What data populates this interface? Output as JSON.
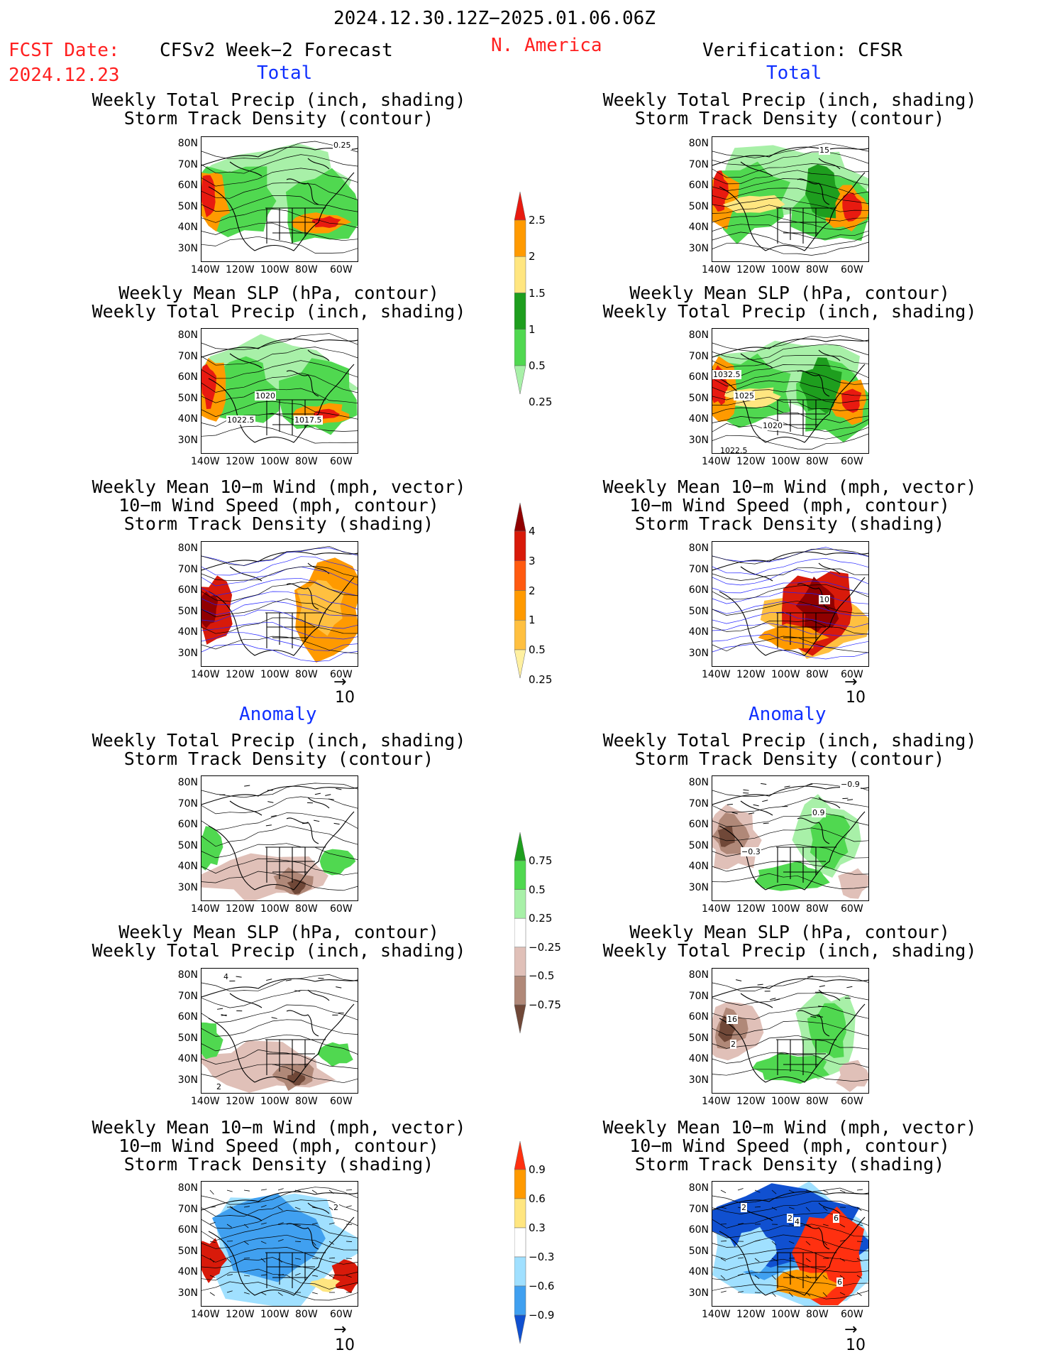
{
  "header": {
    "period": "2024.12.30.12Z−2025.01.06.06Z",
    "fcst_label": "FCST Date:",
    "fcst_date": "2024.12.23",
    "forecast_title": "CFSv2 Week−2 Forecast",
    "region": "N. America",
    "verification": "Verification: CFSR"
  },
  "sections": {
    "total": "Total",
    "anomaly": "Anomaly"
  },
  "panel_titles": {
    "precip_storm": [
      "Weekly Total Precip (inch, shading)",
      "Storm Track Density (contour)"
    ],
    "slp_precip": [
      "Weekly Mean SLP (hPa, contour)",
      "Weekly Total Precip (inch, shading)"
    ],
    "wind_storm": [
      "Weekly Mean 10−m Wind (mph, vector)",
      "10−m Wind Speed (mph, contour)",
      "Storm Track Density (shading)"
    ]
  },
  "axes": {
    "lat_ticks": [
      "80N",
      "70N",
      "60N",
      "50N",
      "40N",
      "30N"
    ],
    "lon_ticks": [
      "140W",
      "120W",
      "100W",
      "80W",
      "60W"
    ]
  },
  "vector_ref": "10",
  "colorbars": {
    "precip_total": {
      "labels": [
        "2.5",
        "2",
        "1.5",
        "1",
        "0.5",
        "0.25"
      ],
      "colors": [
        "#e81a10",
        "#ff9a00",
        "#ffe680",
        "#1e9e1e",
        "#50d850",
        "#a8f0a8"
      ]
    },
    "storm_total": {
      "labels": [
        "4",
        "3",
        "2",
        "1",
        "0.5",
        "0.25"
      ],
      "colors": [
        "#900000",
        "#d81a0a",
        "#ff5a10",
        "#ff9a00",
        "#ffc040",
        "#fff0a0"
      ]
    },
    "precip_anom": {
      "labels": [
        "0.75",
        "0.5",
        "0.25",
        "−0.25",
        "−0.5",
        "−0.75"
      ],
      "colors": [
        "#1e9e1e",
        "#50d850",
        "#a8f0a8",
        "#ffffff",
        "#e0c0b8",
        "#b08878",
        "#704838"
      ]
    },
    "storm_anom": {
      "labels": [
        "0.9",
        "0.6",
        "0.3",
        "−0.3",
        "−0.6",
        "−0.9"
      ],
      "colors": [
        "#ff3010",
        "#ff9a00",
        "#ffe680",
        "#ffffff",
        "#a0e0ff",
        "#40a0f0",
        "#1050d0"
      ]
    }
  },
  "contour_labels": {
    "fcst_precip_total": [
      "0.25"
    ],
    "fcst_slp_total": [
      "1020",
      "1022.5",
      "1017.5"
    ],
    "verif_precip_total": [
      "15"
    ],
    "verif_slp_total": [
      "1032.5",
      "1025",
      "1020",
      "1022.5"
    ],
    "verif_wind_total": [
      "10"
    ],
    "verif_precip_anom": [
      "−0.9",
      "0.9",
      "−0.3"
    ],
    "fcst_slp_anom": [
      "4",
      "2"
    ],
    "verif_slp_anom": [
      "16",
      "2"
    ],
    "fcst_wind_anom": [
      "2"
    ],
    "verif_wind_anom": [
      "2",
      "2",
      "4",
      "6",
      "6"
    ]
  }
}
